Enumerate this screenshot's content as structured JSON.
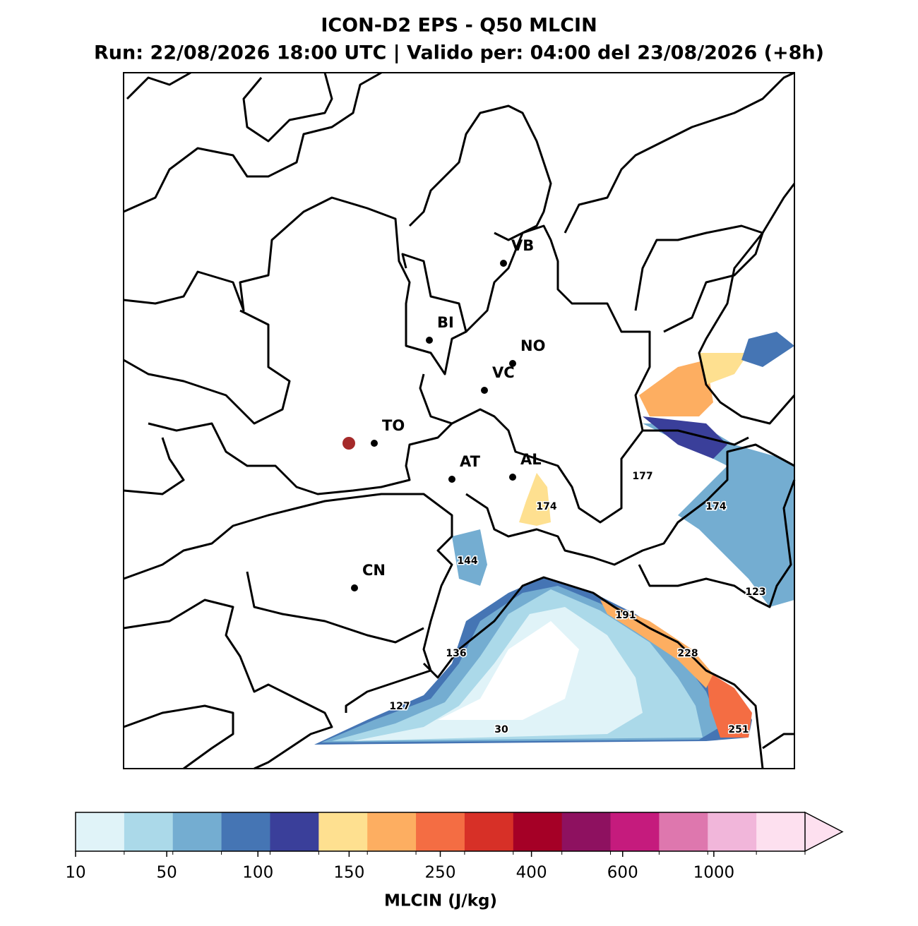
{
  "title": "ICON-D2 EPS - Q50 MLCIN",
  "subtitle": "Run: 22/08/2026 18:00 UTC | Valido per: 04:00 del 23/08/2026 (+8h)",
  "cities": [
    "VB",
    "BI",
    "NO",
    "VC",
    "TO",
    "AT",
    "AL",
    "CN"
  ],
  "contour_labels": [
    "177",
    "174",
    "174",
    "144",
    "123",
    "191",
    "136",
    "228",
    "127",
    "30",
    "251"
  ],
  "colorbar": {
    "label": "MLCIN (J/kg)",
    "colors": [
      "#e0f3f8",
      "#abd9e9",
      "#74add1",
      "#4575b4",
      "#3a3f9a",
      "#fee090",
      "#fdae61",
      "#f46d43",
      "#d73027",
      "#a50026",
      "#8e1160",
      "#c51b7d",
      "#de77ae",
      "#f1b6da",
      "#fde0ef"
    ],
    "ticks": [
      10,
      50,
      100,
      150,
      250,
      400,
      600,
      1000
    ],
    "extend": "max"
  }
}
